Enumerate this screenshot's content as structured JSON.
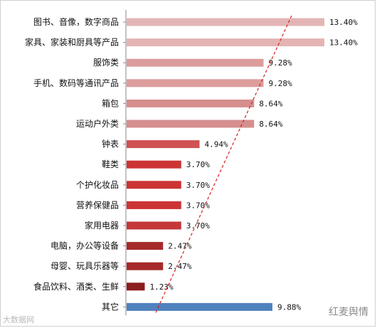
{
  "chart_data": {
    "type": "bar",
    "orientation": "horizontal",
    "categories": [
      "图书、音像，数字商品",
      "家具、家装和厨具等产品",
      "服饰类",
      "手机、数码等通讯产品",
      "箱包",
      "运动户外类",
      "钟表",
      "鞋类",
      "个护化妆品",
      "营养保健品",
      "家用电器",
      "电脑，办公等设备",
      "母婴、玩具乐器等",
      "食品饮料、酒类、生鲜",
      "其它"
    ],
    "values": [
      13.4,
      13.4,
      9.28,
      9.28,
      8.64,
      8.64,
      4.94,
      3.7,
      3.7,
      3.7,
      3.7,
      2.47,
      2.47,
      1.23,
      9.88
    ],
    "value_labels": [
      "13.40%",
      "13.40%",
      "9.28%",
      "9.28%",
      "8.64%",
      "8.64%",
      "4.94%",
      "3.70%",
      "3.70%",
      "3.70%",
      "3.70%",
      "2.47%",
      "2.47%",
      "1.23%",
      "9.88%"
    ],
    "colors": [
      "#e4b4b4",
      "#e4b4b4",
      "#dc9c9c",
      "#dc9c9c",
      "#d68e8e",
      "#d68e8e",
      "#d05252",
      "#cc3434",
      "#cc3434",
      "#cc3434",
      "#c43838",
      "#a62a2a",
      "#a62a2a",
      "#8c1e1e",
      "#4f81bd"
    ],
    "trend_line": {
      "color": "#d42020",
      "style": "dashed"
    },
    "xlim": [
      0,
      13.4
    ],
    "grid": false,
    "legend": "none",
    "title": "",
    "xlabel": "",
    "ylabel": ""
  },
  "watermarks": {
    "left": "大数据网",
    "right": "红麦舆情"
  }
}
